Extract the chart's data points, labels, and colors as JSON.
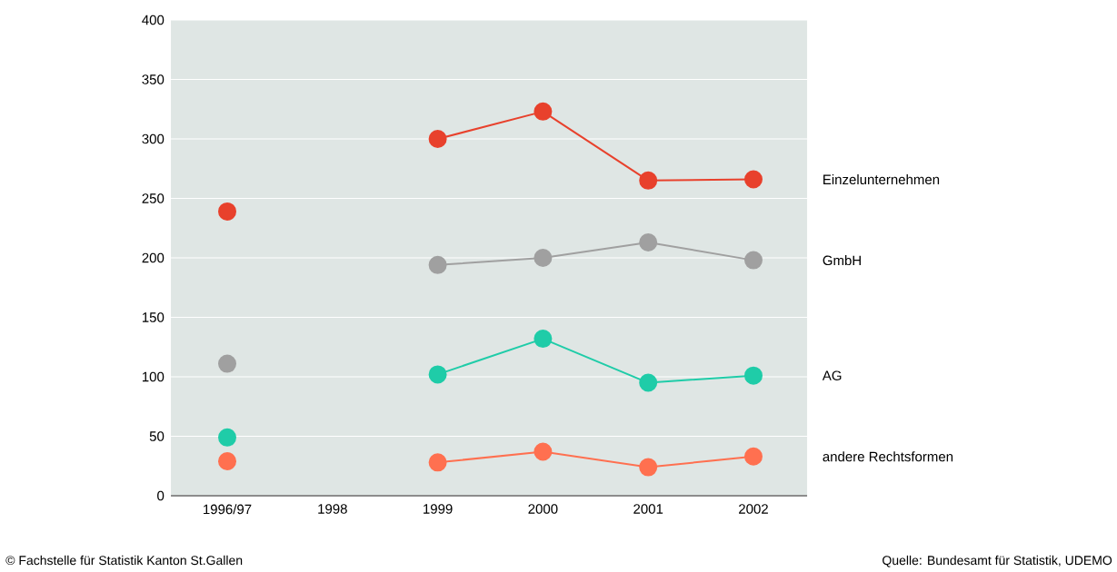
{
  "chart_data": {
    "type": "line",
    "categories": [
      "1996/97",
      "1998",
      "1999",
      "2000",
      "2001",
      "2002"
    ],
    "series": [
      {
        "name": "Einzelunternehmen",
        "color": "#e8412c",
        "values": [
          239,
          null,
          300,
          323,
          265,
          266
        ]
      },
      {
        "name": "GmbH",
        "color": "#a0a0a0",
        "values": [
          111,
          null,
          194,
          200,
          213,
          198
        ]
      },
      {
        "name": "AG",
        "color": "#1fcca8",
        "values": [
          49,
          null,
          102,
          132,
          95,
          101
        ]
      },
      {
        "name": "andere Rechtsformen",
        "color": "#ff7050",
        "values": [
          29,
          null,
          28,
          37,
          24,
          33
        ]
      }
    ],
    "ylim": [
      0,
      400
    ],
    "yticks": [
      0,
      50,
      100,
      150,
      200,
      250,
      300,
      350,
      400
    ],
    "grid": "y",
    "marker": "circle",
    "line_style": "solid",
    "annotations": [
      "© Fachstelle für Statistik Kanton St.Gallen",
      "Quelle: Bundesamt für Statistik, UDEMO"
    ]
  }
}
